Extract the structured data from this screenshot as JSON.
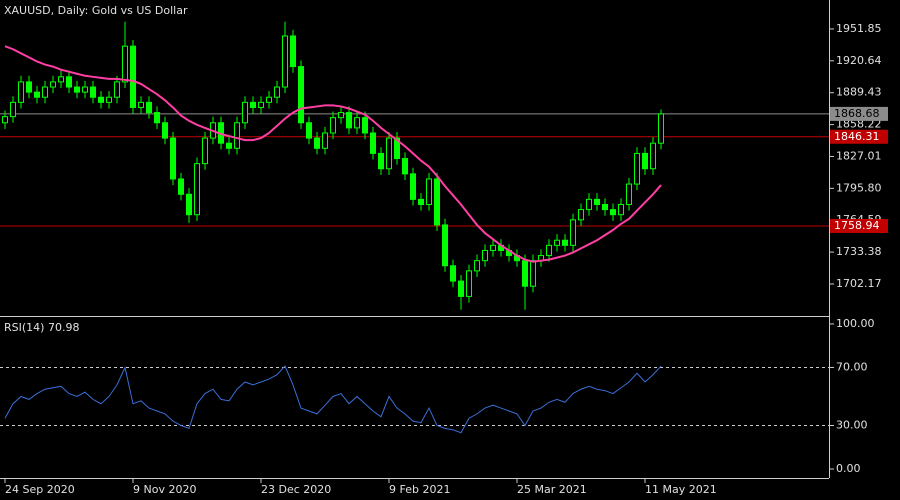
{
  "chart_data": [
    {
      "type": "candlestick",
      "title": "XAUUSD, Daily:  Gold vs US Dollar",
      "categories": [
        "24 Sep 2020",
        null,
        null,
        null,
        null,
        null,
        null,
        null,
        null,
        null,
        null,
        null,
        null,
        null,
        null,
        null,
        "9 Nov 2020",
        null,
        null,
        null,
        null,
        null,
        null,
        null,
        null,
        null,
        null,
        null,
        null,
        null,
        null,
        null,
        "23 Dec 2020",
        null,
        null,
        null,
        null,
        null,
        null,
        null,
        null,
        null,
        null,
        null,
        null,
        null,
        null,
        null,
        "9 Feb 2021",
        null,
        null,
        null,
        null,
        null,
        null,
        null,
        null,
        null,
        null,
        null,
        null,
        null,
        null,
        null,
        "25 Mar 2021",
        null,
        null,
        null,
        null,
        null,
        null,
        null,
        null,
        null,
        null,
        null,
        null,
        null,
        null,
        null,
        "11 May 2021",
        null,
        null
      ],
      "open": [
        1860,
        1866,
        1880,
        1900,
        1890,
        1885,
        1895,
        1900,
        1905,
        1895,
        1890,
        1895,
        1885,
        1880,
        1885,
        1900,
        1935,
        1875,
        1880,
        1870,
        1860,
        1845,
        1805,
        1790,
        1770,
        1820,
        1845,
        1860,
        1840,
        1835,
        1860,
        1880,
        1875,
        1880,
        1885,
        1895,
        1945,
        1915,
        1860,
        1845,
        1835,
        1850,
        1865,
        1870,
        1855,
        1865,
        1850,
        1830,
        1815,
        1845,
        1825,
        1810,
        1785,
        1780,
        1805,
        1760,
        1720,
        1705,
        1690,
        1715,
        1725,
        1735,
        1740,
        1735,
        1730,
        1725,
        1700,
        1725,
        1730,
        1740,
        1745,
        1740,
        1765,
        1775,
        1785,
        1780,
        1775,
        1770,
        1780,
        1800,
        1830,
        1815,
        1840
      ],
      "high": [
        1872,
        1886,
        1906,
        1906,
        1896,
        1901,
        1906,
        1911,
        1911,
        1901,
        1901,
        1901,
        1891,
        1891,
        1906,
        1959,
        1941,
        1886,
        1886,
        1876,
        1866,
        1851,
        1811,
        1796,
        1826,
        1851,
        1866,
        1866,
        1846,
        1866,
        1886,
        1886,
        1886,
        1891,
        1901,
        1959,
        1951,
        1921,
        1866,
        1851,
        1856,
        1871,
        1876,
        1876,
        1871,
        1871,
        1856,
        1836,
        1851,
        1851,
        1831,
        1816,
        1791,
        1811,
        1811,
        1766,
        1726,
        1711,
        1721,
        1731,
        1741,
        1746,
        1746,
        1741,
        1736,
        1731,
        1731,
        1736,
        1746,
        1751,
        1751,
        1771,
        1781,
        1791,
        1791,
        1786,
        1781,
        1786,
        1806,
        1836,
        1836,
        1846,
        1873
      ],
      "low": [
        1854,
        1860,
        1874,
        1884,
        1879,
        1879,
        1889,
        1894,
        1889,
        1884,
        1884,
        1879,
        1874,
        1874,
        1879,
        1894,
        1869,
        1869,
        1864,
        1854,
        1839,
        1799,
        1784,
        1762,
        1764,
        1814,
        1839,
        1834,
        1829,
        1829,
        1854,
        1869,
        1869,
        1874,
        1879,
        1889,
        1909,
        1854,
        1839,
        1829,
        1829,
        1844,
        1859,
        1849,
        1849,
        1844,
        1824,
        1809,
        1809,
        1819,
        1804,
        1779,
        1774,
        1774,
        1754,
        1714,
        1699,
        1677,
        1684,
        1709,
        1719,
        1729,
        1729,
        1724,
        1719,
        1677,
        1694,
        1719,
        1724,
        1734,
        1734,
        1734,
        1759,
        1769,
        1774,
        1769,
        1764,
        1764,
        1774,
        1794,
        1809,
        1809,
        1834
      ],
      "close": [
        1866,
        1880,
        1900,
        1890,
        1885,
        1895,
        1900,
        1905,
        1895,
        1890,
        1895,
        1885,
        1880,
        1885,
        1900,
        1935,
        1875,
        1880,
        1870,
        1860,
        1845,
        1805,
        1790,
        1770,
        1820,
        1845,
        1860,
        1840,
        1835,
        1860,
        1880,
        1875,
        1880,
        1885,
        1895,
        1945,
        1915,
        1860,
        1845,
        1835,
        1850,
        1865,
        1870,
        1855,
        1865,
        1850,
        1830,
        1815,
        1845,
        1825,
        1810,
        1785,
        1780,
        1805,
        1760,
        1720,
        1705,
        1690,
        1715,
        1725,
        1735,
        1740,
        1735,
        1730,
        1725,
        1700,
        1725,
        1730,
        1740,
        1745,
        1740,
        1765,
        1775,
        1785,
        1780,
        1775,
        1770,
        1780,
        1800,
        1830,
        1815,
        1840,
        1868.68
      ],
      "color": "#00ff00",
      "ma": {
        "color": "#ff3fa4",
        "values": [
          1935,
          1932,
          1928,
          1924,
          1920,
          1917,
          1915,
          1912,
          1910,
          1908,
          1906,
          1905,
          1904,
          1903,
          1903,
          1902,
          1901,
          1898,
          1893,
          1888,
          1882,
          1875,
          1867,
          1862,
          1858,
          1855,
          1852,
          1849,
          1847,
          1845,
          1843,
          1843,
          1845,
          1850,
          1857,
          1864,
          1870,
          1874,
          1875,
          1876,
          1877,
          1877,
          1876,
          1874,
          1871,
          1868,
          1862,
          1855,
          1849,
          1843,
          1837,
          1830,
          1823,
          1817,
          1808,
          1798,
          1789,
          1780,
          1770,
          1760,
          1752,
          1746,
          1740,
          1735,
          1730,
          1726,
          1724,
          1725,
          1726,
          1728,
          1730,
          1733,
          1737,
          1741,
          1745,
          1750,
          1755,
          1761,
          1766,
          1774,
          1782,
          1790,
          1799
        ]
      },
      "ylim": [
        1671.8,
        1980.2
      ],
      "yticks": [
        1951.85,
        1920.64,
        1889.43,
        1858.22,
        1827.01,
        {
          "value": 1795.8,
          "label": "1795.80"
        },
        1764.59,
        1733.38,
        1702.17
      ],
      "price_lines": [
        {
          "value": 1846.31,
          "label": "1846.31",
          "color": "#c00000"
        },
        {
          "value": 1758.94,
          "label": "1758.94",
          "color": "#c00000"
        }
      ],
      "current_price": {
        "value": 1868.68,
        "label": "1868.68",
        "color": "#8c8c8c"
      }
    },
    {
      "type": "line",
      "title": "RSI(14) 70.98",
      "values": [
        35,
        45,
        50,
        48,
        52,
        55,
        56,
        57,
        52,
        50,
        53,
        48,
        45,
        50,
        58,
        70,
        45,
        47,
        42,
        40,
        38,
        33,
        30,
        28,
        45,
        52,
        55,
        48,
        47,
        55,
        60,
        58,
        60,
        62,
        65,
        71,
        58,
        42,
        40,
        38,
        44,
        50,
        52,
        45,
        50,
        45,
        40,
        36,
        50,
        42,
        38,
        33,
        32,
        42,
        30,
        28,
        27,
        25,
        35,
        38,
        42,
        44,
        42,
        40,
        38,
        30,
        40,
        42,
        46,
        48,
        46,
        52,
        55,
        57,
        55,
        54,
        52,
        56,
        60,
        66,
        60,
        65,
        70.98
      ],
      "color": "#3a6fd8",
      "ylim": [
        -6.2,
        104.1
      ],
      "yticks": [
        {
          "value": 100,
          "label": "100.00"
        },
        {
          "value": 70,
          "label": "70.00"
        },
        {
          "value": 30,
          "label": "30.00"
        },
        {
          "value": 0,
          "label": "0.00"
        }
      ]
    }
  ]
}
